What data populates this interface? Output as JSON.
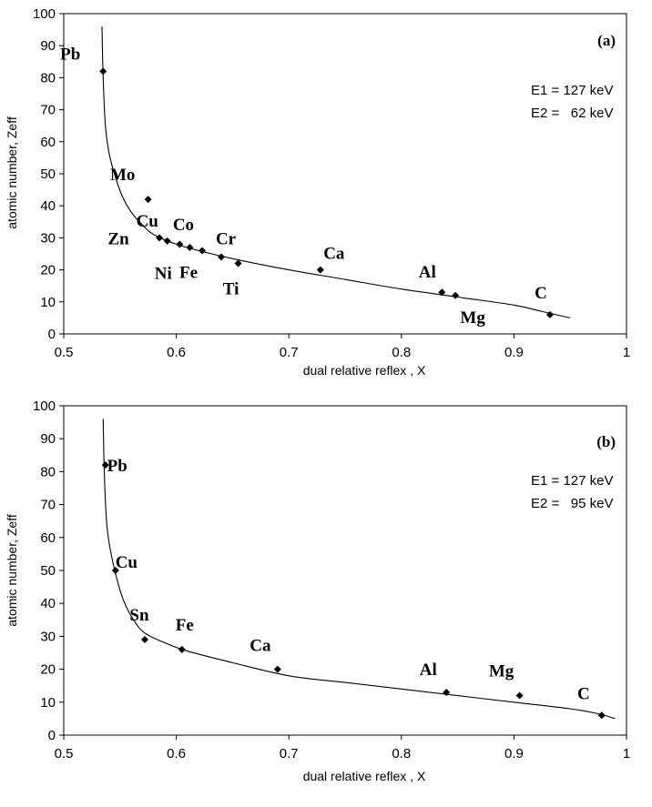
{
  "chart_data": [
    {
      "type": "scatter",
      "panel_label": "(a)",
      "xlabel": "dual relative reflex , X",
      "ylabel": "atomic number, Zeff",
      "xlim": [
        0.5,
        1
      ],
      "ylim": [
        0,
        100
      ],
      "xticks": [
        "0.5",
        "0.6",
        "0.7",
        "0.8",
        "0.9",
        "1"
      ],
      "yticks": [
        "0",
        "10",
        "20",
        "30",
        "40",
        "50",
        "60",
        "70",
        "80",
        "90",
        "100"
      ],
      "annotations": [
        "E1 = 127 keV",
        "E2 =   62 keV"
      ],
      "points": [
        {
          "label": "Pb",
          "x": 0.535,
          "y": 82
        },
        {
          "label": "Mo",
          "x": 0.575,
          "y": 42
        },
        {
          "label": "Zn",
          "x": 0.585,
          "y": 30
        },
        {
          "label": "Cu",
          "x": 0.592,
          "y": 29
        },
        {
          "label": "Ni",
          "x": 0.603,
          "y": 28
        },
        {
          "label": "Co",
          "x": 0.612,
          "y": 27
        },
        {
          "label": "Fe",
          "x": 0.623,
          "y": 26
        },
        {
          "label": "Cr",
          "x": 0.64,
          "y": 24
        },
        {
          "label": "Ti",
          "x": 0.655,
          "y": 22
        },
        {
          "label": "Ca",
          "x": 0.728,
          "y": 20
        },
        {
          "label": "Al",
          "x": 0.836,
          "y": 13
        },
        {
          "label": "Mg",
          "x": 0.848,
          "y": 12
        },
        {
          "label": "C",
          "x": 0.932,
          "y": 6
        }
      ],
      "fit_curve": {
        "x": [
          0.534,
          0.535,
          0.537,
          0.54,
          0.545,
          0.552,
          0.56,
          0.57,
          0.58,
          0.6,
          0.62,
          0.65,
          0.7,
          0.75,
          0.8,
          0.85,
          0.9,
          0.925,
          0.95
        ],
        "y": [
          96,
          80,
          65,
          57,
          50,
          43,
          38,
          34,
          31,
          28,
          26,
          23.5,
          20,
          17,
          14,
          11.5,
          9,
          7,
          5
        ]
      }
    },
    {
      "type": "scatter",
      "panel_label": "(b)",
      "xlabel": "dual relative reflex , X",
      "ylabel": "atomic number, Zeff",
      "xlim": [
        0.5,
        1
      ],
      "ylim": [
        0,
        100
      ],
      "xticks": [
        "0.5",
        "0.6",
        "0.7",
        "0.8",
        "0.9",
        "1"
      ],
      "yticks": [
        "0",
        "10",
        "20",
        "30",
        "40",
        "50",
        "60",
        "70",
        "80",
        "90",
        "100"
      ],
      "annotations": [
        "E1 = 127 keV",
        "E2 =   95 keV"
      ],
      "points": [
        {
          "label": "Pb",
          "x": 0.537,
          "y": 82
        },
        {
          "label": "Cu",
          "x": 0.546,
          "y": 50
        },
        {
          "label": "Sn",
          "x": 0.572,
          "y": 29
        },
        {
          "label": "Fe",
          "x": 0.605,
          "y": 26
        },
        {
          "label": "Ca",
          "x": 0.69,
          "y": 20
        },
        {
          "label": "Al",
          "x": 0.84,
          "y": 13
        },
        {
          "label": "Mg",
          "x": 0.905,
          "y": 12
        },
        {
          "label": "C",
          "x": 0.978,
          "y": 6
        }
      ],
      "fit_curve": {
        "x": [
          0.535,
          0.536,
          0.538,
          0.541,
          0.546,
          0.553,
          0.562,
          0.572,
          0.59,
          0.61,
          0.65,
          0.7,
          0.75,
          0.8,
          0.85,
          0.9,
          0.95,
          0.975,
          0.99
        ],
        "y": [
          96,
          80,
          65,
          57,
          49,
          41,
          35,
          31,
          28,
          25.5,
          22,
          18,
          16,
          14,
          12,
          10,
          8,
          6.5,
          5
        ]
      }
    }
  ]
}
